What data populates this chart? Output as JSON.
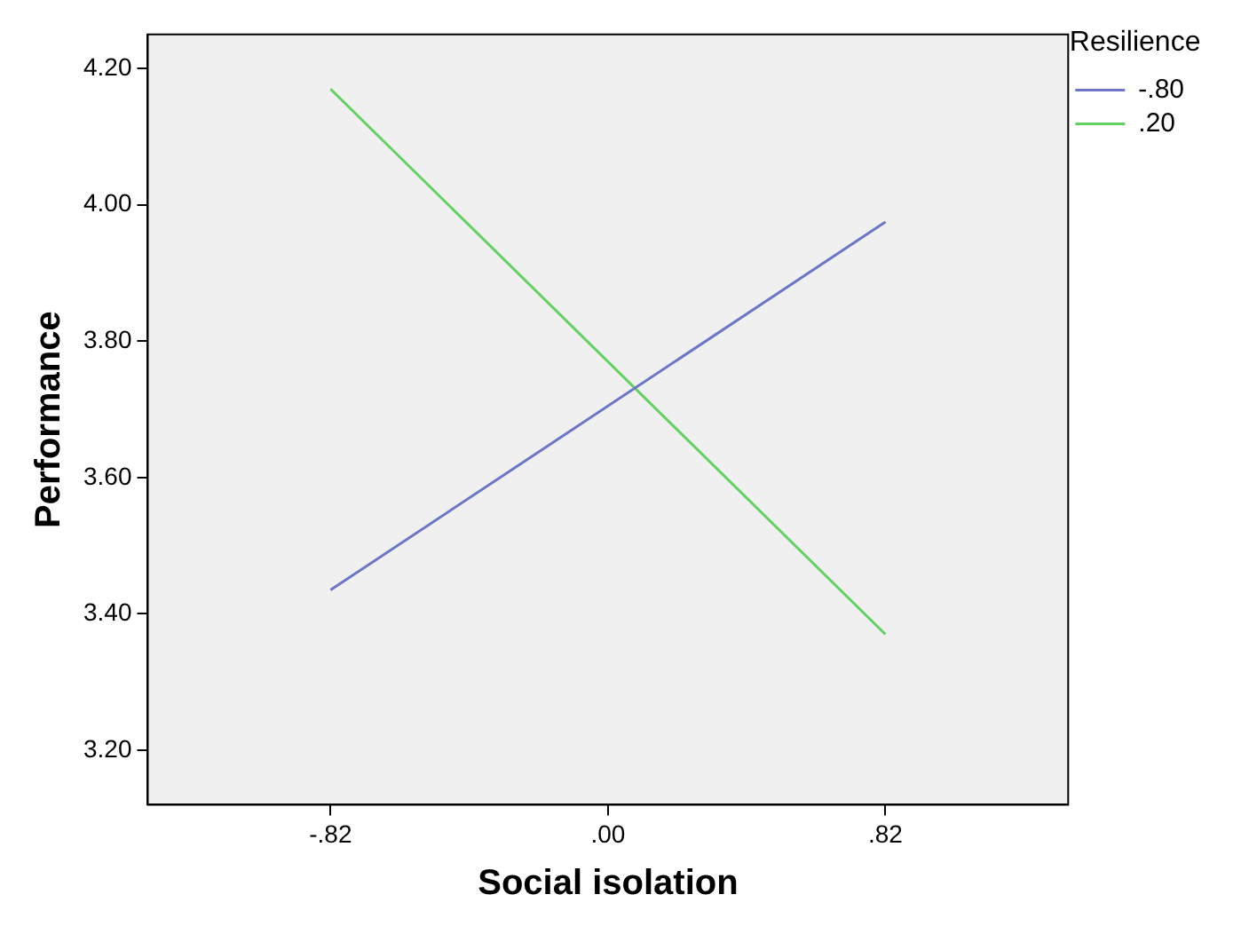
{
  "chart_data": {
    "type": "line",
    "xlabel": "Social isolation",
    "ylabel": "Performance",
    "legend_title": "Resilience",
    "legend": "top right",
    "marker": "none",
    "line_style": "solid",
    "grid": false,
    "x": [
      -0.82,
      0.82
    ],
    "xlim": [
      -1.36,
      1.36
    ],
    "xticks": [
      {
        "value": -0.82,
        "label": "-.82"
      },
      {
        "value": 0,
        "label": ".00"
      },
      {
        "value": 0.82,
        "label": ".82"
      }
    ],
    "ylim": [
      3.12,
      4.25
    ],
    "yticks": [
      {
        "value": 3.2,
        "label": "3.20"
      },
      {
        "value": 3.4,
        "label": "3.40"
      },
      {
        "value": 3.6,
        "label": "3.60"
      },
      {
        "value": 3.8,
        "label": "3.80"
      },
      {
        "value": 4.0,
        "label": "4.00"
      },
      {
        "value": 4.2,
        "label": "4.20"
      }
    ],
    "series": [
      {
        "name": "-.80",
        "color": "#6b76c8",
        "values": [
          3.435,
          3.975
        ]
      },
      {
        "name": ".20",
        "color": "#62d162",
        "values": [
          4.17,
          3.37
        ]
      }
    ]
  }
}
